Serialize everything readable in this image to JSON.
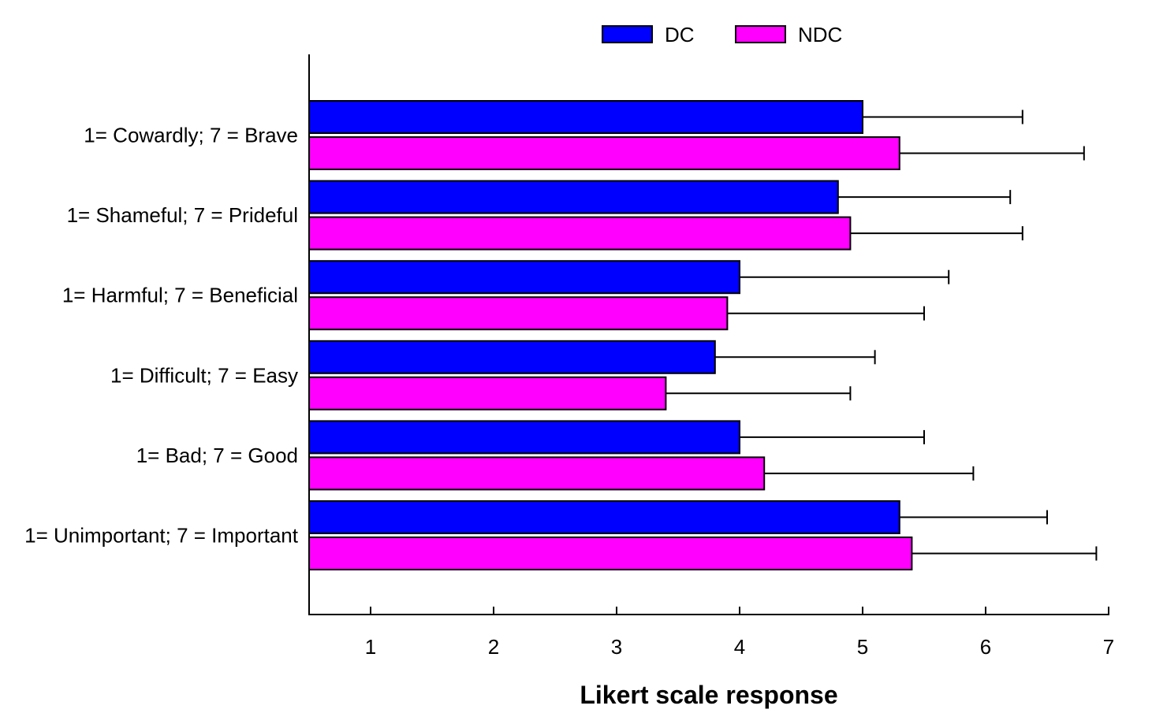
{
  "chart_data": {
    "type": "bar",
    "orientation": "horizontal",
    "xlabel": "Likert scale response",
    "ylabel": "",
    "xlim": [
      0.5,
      7
    ],
    "xticks": [
      1,
      2,
      3,
      4,
      5,
      6,
      7
    ],
    "grid": false,
    "legend_position": "top-center",
    "categories": [
      "1= Cowardly; 7 = Brave",
      "1= Shameful; 7 = Prideful",
      "1= Harmful; 7 = Beneficial",
      "1= Difficult; 7 = Easy",
      "1= Bad; 7 = Good",
      "1= Unimportant; 7 = Important"
    ],
    "series": [
      {
        "name": "DC",
        "color": "#0000ff",
        "values": [
          5.0,
          4.8,
          4.0,
          3.8,
          4.0,
          5.3
        ],
        "error_upper": [
          6.3,
          6.2,
          5.7,
          5.1,
          5.5,
          6.5
        ]
      },
      {
        "name": "NDC",
        "color": "#ff00ff",
        "values": [
          5.3,
          4.9,
          3.9,
          3.4,
          4.2,
          5.4
        ],
        "error_upper": [
          6.8,
          6.3,
          5.5,
          4.9,
          5.9,
          6.9
        ]
      }
    ]
  }
}
